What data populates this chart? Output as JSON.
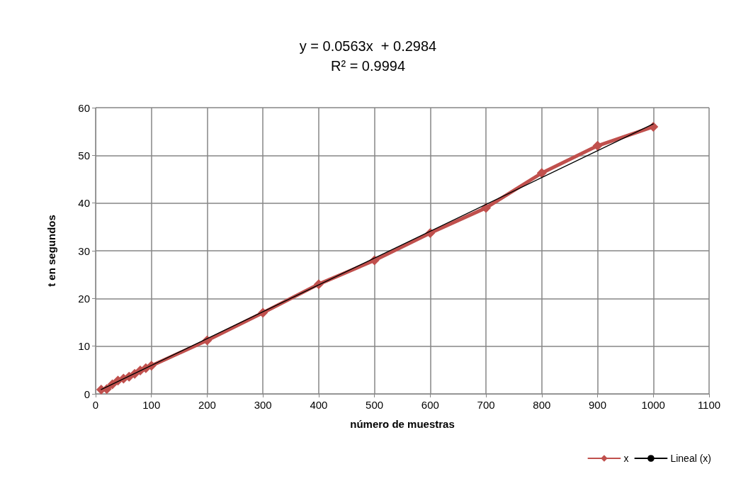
{
  "chart_data": {
    "type": "line",
    "title": "y = 0.0563x  + 0.2984",
    "subtitle": "R² = 0.9994",
    "xlabel": "número de muestras",
    "ylabel": "t en segundos",
    "xlim": [
      0,
      1100
    ],
    "xticks": [
      0,
      100,
      200,
      300,
      400,
      500,
      600,
      700,
      800,
      900,
      1000,
      1100
    ],
    "ylim": [
      0,
      60
    ],
    "yticks": [
      0,
      10,
      20,
      30,
      40,
      50,
      60
    ],
    "grid": true,
    "legend": "bottom right",
    "marker": "diamond",
    "line_style": "solid",
    "series": [
      {
        "name": "x",
        "color": "#c0504d",
        "x": [
          10,
          20,
          30,
          40,
          50,
          60,
          70,
          80,
          90,
          100,
          200,
          300,
          400,
          500,
          600,
          700,
          800,
          900,
          1000
        ],
        "values": [
          0.9,
          1.0,
          2.0,
          2.8,
          3.2,
          3.6,
          4.2,
          4.9,
          5.4,
          5.9,
          11.2,
          17,
          23,
          28,
          33.7,
          39,
          46.3,
          52,
          56
        ]
      },
      {
        "name": "Lineal (x)",
        "color": "#000000",
        "marker": "none",
        "x": [
          10,
          1000
        ],
        "values": [
          0.9,
          56.6
        ]
      }
    ]
  }
}
